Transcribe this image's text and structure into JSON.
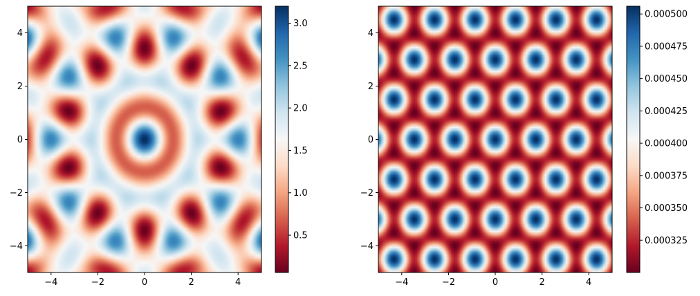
{
  "chart_data": [
    {
      "type": "heatmap",
      "title": "",
      "xlabel": "",
      "ylabel": "",
      "xlim": [
        -5,
        5
      ],
      "ylim": [
        -5,
        5
      ],
      "x_ticks": [
        -4,
        -2,
        0,
        2,
        4
      ],
      "y_ticks": [
        -4,
        -2,
        0,
        2,
        4
      ],
      "x_tick_labels": [
        "−4",
        "−2",
        "0",
        "2",
        "4"
      ],
      "y_tick_labels": [
        "−4",
        "−2",
        "0",
        "2",
        "4"
      ],
      "pattern": "quasiperiodic interference of 5 plane waves (k≈3.14) with a ring centred at origin",
      "colormap": "RdBu",
      "value_range": [
        0.06,
        3.2
      ],
      "colorbar": {
        "ticks": [
          0.5,
          1.0,
          1.5,
          2.0,
          2.5,
          3.0
        ],
        "tick_labels": [
          "0.5",
          "1.0",
          "1.5",
          "2.0",
          "2.5",
          "3.0"
        ]
      }
    },
    {
      "type": "heatmap",
      "title": "",
      "xlabel": "",
      "ylabel": "",
      "xlim": [
        -5,
        5
      ],
      "ylim": [
        -5,
        5
      ],
      "x_ticks": [
        -4,
        -2,
        0,
        2,
        4
      ],
      "y_ticks": [
        -4,
        -2,
        0,
        2,
        4
      ],
      "x_tick_labels": [
        "−4",
        "−2",
        "0",
        "2",
        "4"
      ],
      "y_tick_labels": [
        "−4",
        "−2",
        "0",
        "2",
        "4"
      ],
      "pattern": "periodic hexagonal lattice of blue spots on red background",
      "colormap": "RdBu",
      "value_range": [
        0.0003,
        0.000506
      ],
      "colorbar": {
        "ticks": [
          0.000325,
          0.00035,
          0.000375,
          0.0004,
          0.000425,
          0.00045,
          0.000475,
          0.0005
        ],
        "tick_labels": [
          "0.000325",
          "0.000350",
          "0.000375",
          "0.000400",
          "0.000425",
          "0.000450",
          "0.000475",
          "0.000500"
        ]
      }
    }
  ]
}
